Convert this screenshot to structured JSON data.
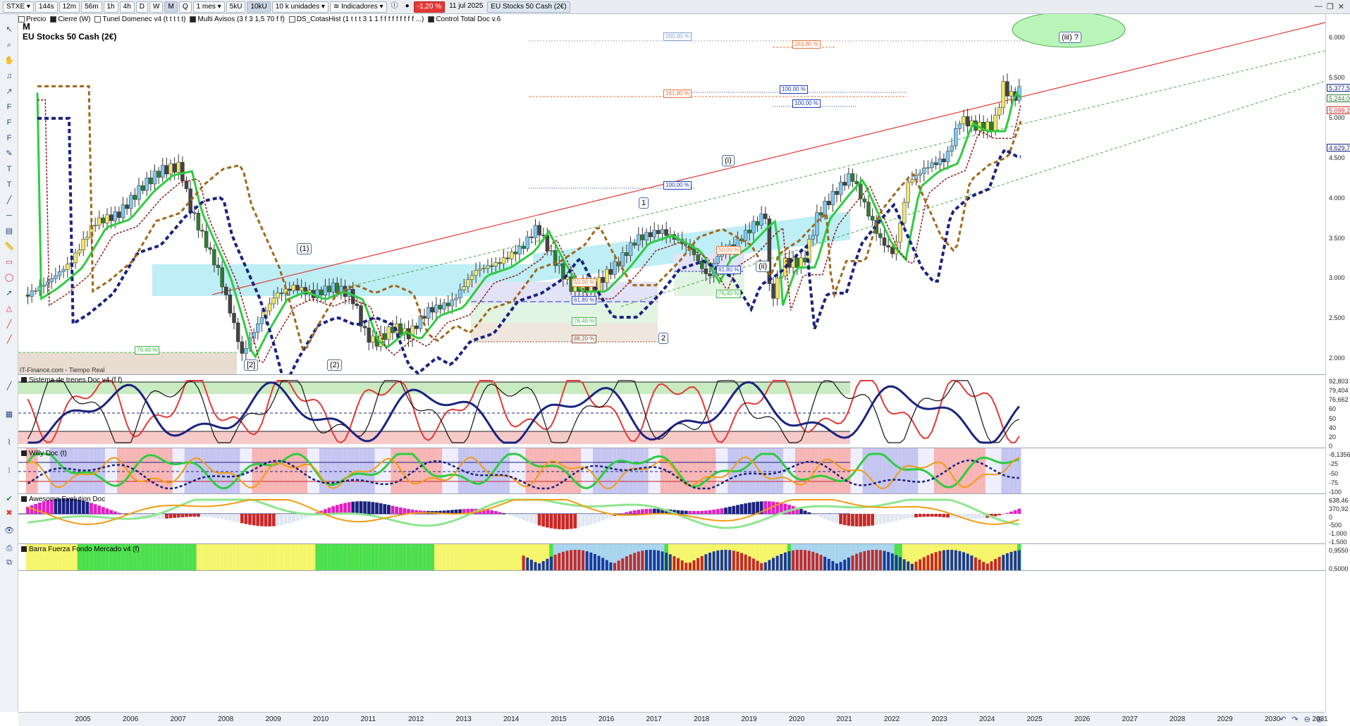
{
  "toolbar": {
    "symbol": "STXE",
    "timeframes": [
      "144s",
      "12m",
      "56m",
      "1h",
      "4h",
      "D",
      "W",
      "M",
      "Q"
    ],
    "selected_tf": "M",
    "period": "1 mes",
    "buttons": [
      "5kU",
      "10kU"
    ],
    "units": "10 k unidades",
    "indicators_label": "Indicadores",
    "change": "-1,20 %",
    "date": "11 jul 2025",
    "instrument": "EU Stocks 50 Cash (2€)"
  },
  "indicator_bar": [
    "Precio",
    "Cierre (W)",
    "Tunel Domenec v4 (t t t t t)",
    "Multi Avisos (3 f 3 1,5 70 f f)",
    "DS_CotasHist (1 t t t 3 1 1 f f f f f f f f f ...)",
    "Control Total Doc v.6"
  ],
  "chart_header": {
    "period_letter": "M",
    "name": "EU Stocks 50 Cash (2€)"
  },
  "source_label": "IT-Finance.com - Tiempo Real",
  "price_axis": {
    "ticks": [
      "6.000",
      "5.500",
      "5.000",
      "4.500",
      "4.000",
      "3.500",
      "3.000",
      "2.500",
      "2.000"
    ],
    "tags": [
      {
        "text": "5.377,5",
        "color": "#1a237e"
      },
      {
        "text": "5.244,0",
        "color": "#2e7d32"
      },
      {
        "text": "5.099,2",
        "color": "#c62828"
      },
      {
        "text": "4.629,7",
        "color": "#1a237e"
      }
    ]
  },
  "fib_labels": [
    {
      "text": "200,00 %",
      "color": "#7fa3d8"
    },
    {
      "text": "161,80 %",
      "color": "#e8743b"
    },
    {
      "text": "161,80 %",
      "color": "#e8743b"
    },
    {
      "text": "100,00 %",
      "color": "#1f3fbf"
    },
    {
      "text": "100,00 %",
      "color": "#1f3fbf"
    },
    {
      "text": "100,00 %",
      "color": "#1f3fbf"
    },
    {
      "text": "50,00 %",
      "color": "#e8743b"
    },
    {
      "text": "61,80 %",
      "color": "#1f3fbf"
    },
    {
      "text": "76,40 %",
      "color": "#41b548"
    },
    {
      "text": "88,20 %",
      "color": "#8d4a2e"
    },
    {
      "text": "50,00 %",
      "color": "#e8743b"
    },
    {
      "text": "61,80 %",
      "color": "#1f3fbf"
    },
    {
      "text": "76,40 %",
      "color": "#41b548"
    },
    {
      "text": "76,40 %",
      "color": "#41b548"
    }
  ],
  "wave_labels": [
    "[2]",
    "(1)",
    "(2)",
    "1",
    "2",
    "(i)",
    "(ii)",
    "(iii) ?"
  ],
  "panels": {
    "trenes": {
      "title": "Sistema de trenes Doc v4 (f f)",
      "ticks": [
        "92,803",
        "79,404",
        "76,662",
        "60",
        "50",
        "40",
        "20",
        "0"
      ]
    },
    "willy": {
      "title": "Willy Doc (t)",
      "ticks": [
        "-8,1356",
        "-25",
        "-50",
        "-75",
        "-100"
      ]
    },
    "awesome": {
      "title": "Awesome Evolution Doc",
      "ticks": [
        "638,46",
        "370,92",
        "0",
        "-500",
        "-1.000",
        "-1.500"
      ]
    },
    "barra": {
      "title": "Barra Fuerza Fondo Mercado v4 (f)",
      "ticks": [
        "0,9550",
        "0,5000"
      ]
    }
  },
  "x_axis": [
    "2005",
    "2006",
    "2007",
    "2008",
    "2009",
    "2010",
    "2011",
    "2012",
    "2013",
    "2014",
    "2015",
    "2016",
    "2017",
    "2018",
    "2019",
    "2020",
    "2021",
    "2022",
    "2023",
    "2024",
    "2025",
    "2026",
    "2027",
    "2028",
    "2029",
    "2030",
    "2031"
  ],
  "chart_data": {
    "type": "candlestick",
    "title": "EU Stocks 50 Cash (2€)",
    "period": "M",
    "ylim": [
      1800,
      6300
    ],
    "x": [
      2004.6,
      2005.0,
      2005.5,
      2006.0,
      2006.5,
      2007.0,
      2007.4,
      2007.8,
      2008.0,
      2008.3,
      2008.6,
      2008.9,
      2009.1,
      2009.4,
      2009.8,
      2010.2,
      2010.6,
      2011.0,
      2011.4,
      2011.7,
      2011.9,
      2012.3,
      2012.6,
      2013.0,
      2013.5,
      2014.0,
      2014.5,
      2015.0,
      2015.3,
      2015.6,
      2016.0,
      2016.5,
      2017.0,
      2017.4,
      2017.9,
      2018.2,
      2018.5,
      2018.9,
      2019.1,
      2019.5,
      2019.9,
      2020.1,
      2020.2,
      2020.5,
      2020.9,
      2021.2,
      2021.6,
      2021.9,
      2022.2,
      2022.5,
      2022.8,
      2023.1,
      2023.5,
      2023.9,
      2024.2,
      2024.5,
      2024.9,
      2025.1,
      2025.3,
      2025.5
    ],
    "close": [
      2800,
      2950,
      3200,
      3700,
      3800,
      4150,
      4350,
      4400,
      3900,
      3500,
      3100,
      2500,
      2050,
      2400,
      2800,
      2900,
      2800,
      2900,
      2800,
      2300,
      2200,
      2400,
      2300,
      2600,
      2700,
      3100,
      3200,
      3400,
      3650,
      3300,
      2900,
      2900,
      3200,
      3500,
      3600,
      3500,
      3400,
      3000,
      3300,
      3450,
      3700,
      3800,
      2700,
      3200,
      3200,
      3800,
      4100,
      4300,
      3900,
      3500,
      3300,
      4200,
      4400,
      4500,
      5000,
      4900,
      4900,
      5400,
      5250,
      5380
    ]
  }
}
